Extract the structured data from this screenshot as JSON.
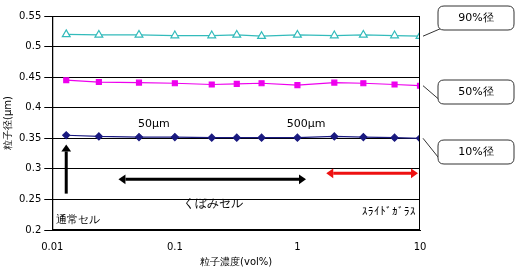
{
  "chart_data": {
    "type": "line",
    "x_label": "粒子濃度(vol%)",
    "y_label": "粒子径(μm)",
    "log": "x",
    "grid": true,
    "xlim": [
      0.01,
      10
    ],
    "xticks": [
      0.01,
      0.1,
      1,
      10
    ],
    "ylim": [
      0.2,
      0.55
    ],
    "yticks": [
      0.2,
      0.25,
      0.3,
      0.35,
      0.4,
      0.45,
      0.5,
      0.55
    ],
    "x": [
      0.013,
      0.024,
      0.051,
      0.1,
      0.2,
      0.32,
      0.51,
      1,
      2,
      3.45,
      6.2,
      10
    ],
    "series": [
      {
        "name": "90%径",
        "color": "#33bbbb",
        "marker": "triangle",
        "values": [
          0.52,
          0.519,
          0.519,
          0.518,
          0.518,
          0.519,
          0.517,
          0.519,
          0.518,
          0.519,
          0.518,
          0.517
        ]
      },
      {
        "name": "50%径",
        "color": "#ee00ee",
        "marker": "square",
        "values": [
          0.445,
          0.442,
          0.441,
          0.44,
          0.438,
          0.439,
          0.44,
          0.437,
          0.441,
          0.44,
          0.438,
          0.436
        ]
      },
      {
        "name": "10%径",
        "color": "#1a1a80",
        "marker": "diamond",
        "values": [
          0.355,
          0.353,
          0.352,
          0.352,
          0.351,
          0.351,
          0.351,
          0.351,
          0.353,
          0.352,
          0.351,
          0.35
        ]
      }
    ],
    "annotations": [
      {
        "text": "通常セル"
      },
      {
        "text": "くぼみセル"
      },
      {
        "text": "50μm"
      },
      {
        "text": "500μm"
      },
      {
        "text": "ｽﾗｲﾄﾞｶﾞﾗｽ"
      }
    ]
  }
}
